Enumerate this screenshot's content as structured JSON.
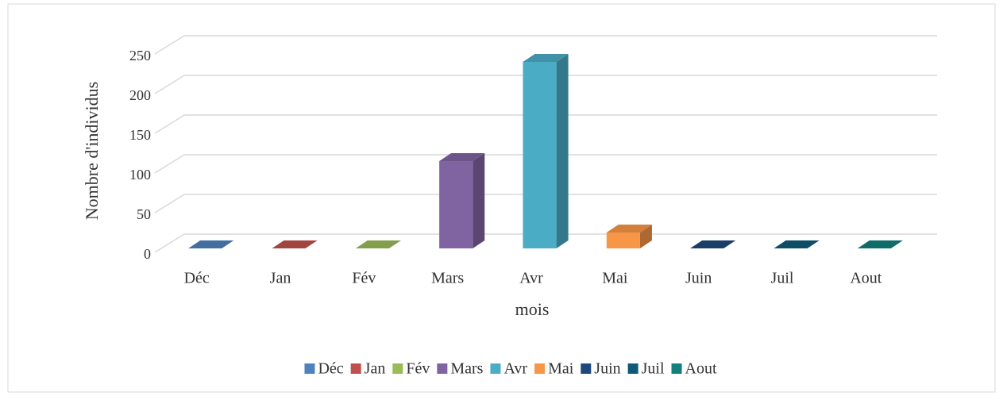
{
  "chart_data": {
    "type": "bar3d",
    "categories": [
      "Déc",
      "Jan",
      "Fév",
      "Mars",
      "Avr",
      "Mai",
      "Juin",
      "Juil",
      "Aout"
    ],
    "values": [
      0,
      0,
      0,
      110,
      235,
      20,
      0,
      0,
      0
    ],
    "colors": [
      "#4f81bd",
      "#c0504d",
      "#9bbb59",
      "#8064a2",
      "#4bacc6",
      "#f79646",
      "#1f497d",
      "#0f5a78",
      "#12807c"
    ],
    "ylabel": "Nombre d'individus",
    "xlabel": "mois",
    "ylim": [
      0,
      250
    ],
    "yticks": [
      0,
      50,
      100,
      150,
      200,
      250
    ],
    "grid": true,
    "legend": "bottom"
  }
}
